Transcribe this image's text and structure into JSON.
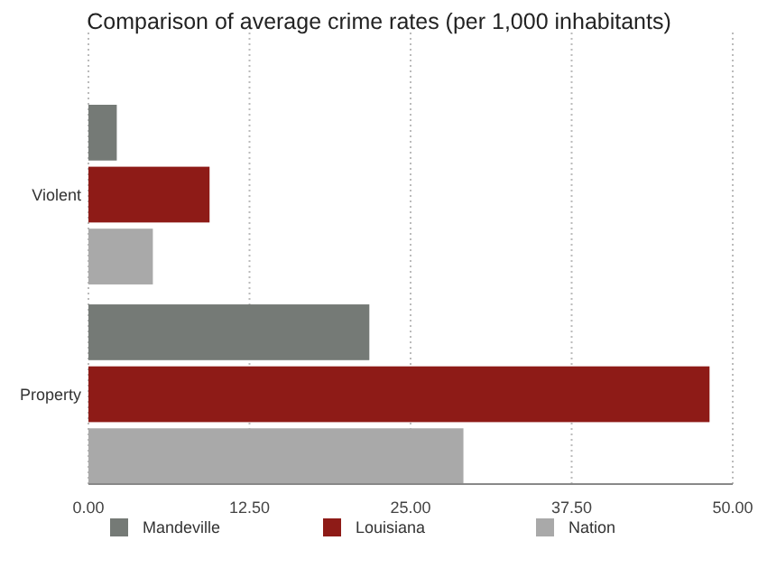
{
  "chart_data": {
    "type": "bar",
    "orientation": "horizontal",
    "title": "Comparison of average crime rates (per 1,000 inhabitants)",
    "categories": [
      "Violent",
      "Property"
    ],
    "series": [
      {
        "name": "Mandeville",
        "color": "#757a76",
        "values": [
          2.2,
          21.8
        ]
      },
      {
        "name": "Louisiana",
        "color": "#8e1b17",
        "values": [
          9.4,
          48.2
        ]
      },
      {
        "name": "Nation",
        "color": "#a9a9a9",
        "values": [
          5.0,
          29.1
        ]
      }
    ],
    "xlim": [
      0,
      50
    ],
    "xticks": [
      {
        "value": 0,
        "label": "0.00"
      },
      {
        "value": 12.5,
        "label": "12.50"
      },
      {
        "value": 25,
        "label": "25.00"
      },
      {
        "value": 37.5,
        "label": "37.50"
      },
      {
        "value": 50,
        "label": "50.00"
      }
    ],
    "grid": "x",
    "legend": "bottom"
  }
}
